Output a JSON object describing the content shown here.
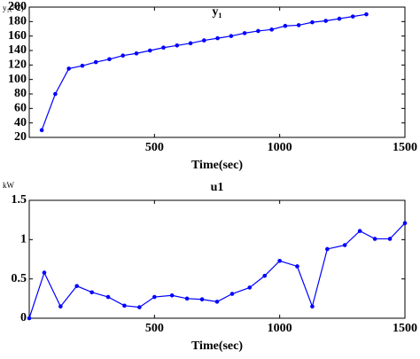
{
  "chart_data": [
    {
      "type": "line",
      "title": "y₁",
      "y_unit_label": "y₁(℃)",
      "x_label": "Time(sec)",
      "x": [
        50,
        104,
        158,
        212,
        266,
        320,
        374,
        428,
        482,
        536,
        590,
        644,
        698,
        752,
        806,
        860,
        914,
        968,
        1022,
        1076,
        1130,
        1184,
        1238,
        1292,
        1346
      ],
      "series": [
        {
          "color": "#0000ff",
          "values": [
            30,
            80,
            115,
            119,
            124,
            128,
            133,
            136,
            140,
            144,
            147,
            150,
            154,
            157,
            160,
            164,
            167,
            169,
            174,
            175,
            179,
            181,
            184,
            187,
            190
          ]
        }
      ],
      "xlim": [
        0,
        1500
      ],
      "xticks": [
        500,
        1000,
        1500
      ],
      "ylim": [
        20,
        200
      ],
      "yticks": [
        20,
        40,
        60,
        80,
        100,
        120,
        140,
        160,
        180,
        200
      ]
    },
    {
      "type": "line",
      "title": "u1",
      "y_unit_label": "kW",
      "x_label": "Time(sec)",
      "x": [
        0,
        60,
        125,
        190,
        250,
        315,
        380,
        440,
        500,
        570,
        630,
        690,
        750,
        810,
        880,
        940,
        1000,
        1070,
        1130,
        1190,
        1260,
        1320,
        1380,
        1440,
        1500
      ],
      "series": [
        {
          "color": "#0000ff",
          "values": [
            0,
            0.58,
            0.15,
            0.41,
            0.33,
            0.27,
            0.16,
            0.14,
            0.27,
            0.29,
            0.25,
            0.24,
            0.21,
            0.31,
            0.39,
            0.54,
            0.73,
            0.66,
            0.15,
            0.88,
            0.93,
            1.11,
            1.01,
            1.01,
            1.21
          ]
        }
      ],
      "xlim": [
        0,
        1500
      ],
      "xticks": [
        500,
        1000,
        1500
      ],
      "ylim": [
        0,
        1.5
      ],
      "yticks": [
        0,
        0.5,
        1,
        1.5
      ]
    }
  ]
}
